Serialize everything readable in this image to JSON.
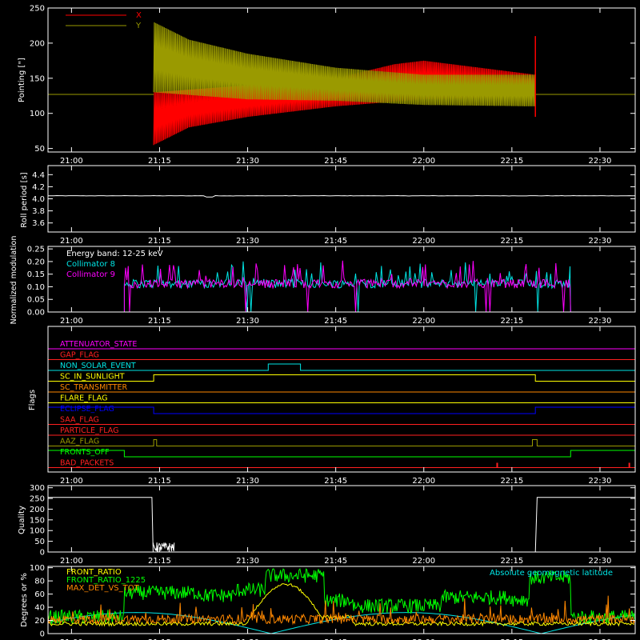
{
  "time_ticks": [
    "21:00",
    "21:15",
    "21:30",
    "21:45",
    "22:00",
    "22:15",
    "22:30"
  ],
  "time_tick_minutes": [
    0,
    15,
    30,
    45,
    60,
    75,
    90
  ],
  "time_range_minutes": [
    -4,
    96
  ],
  "colors": {
    "bg": "#000000",
    "axis": "#ffffff",
    "x_series": "#ff0000",
    "y_series": "#9a9a00",
    "cyan": "#00e5e5",
    "magenta": "#ff00ff",
    "yellow": "#ffff00",
    "orange": "#ff8800",
    "green": "#00ff00",
    "blue": "#0000ff",
    "red": "#ff2020"
  },
  "chart_data": [
    {
      "type": "line",
      "ylabel": "Pointing [\"]",
      "ylim": [
        45,
        250
      ],
      "yticks": [
        50,
        100,
        150,
        200,
        250
      ],
      "legend": {
        "placement": "top-left"
      },
      "series": [
        {
          "name": "X",
          "color": "#ff0000",
          "static_value": 127,
          "active_minutes": [
            14,
            79
          ],
          "envelope_lo": [
            [
              14,
              55
            ],
            [
              20,
              80
            ],
            [
              30,
              95
            ],
            [
              45,
              110
            ],
            [
              60,
              120
            ],
            [
              79,
              125
            ]
          ],
          "envelope_hi": [
            [
              14,
              130
            ],
            [
              30,
              140
            ],
            [
              45,
              150
            ],
            [
              55,
              170
            ],
            [
              60,
              175
            ],
            [
              79,
              155
            ]
          ]
        },
        {
          "name": "Y",
          "color": "#9a9a00",
          "static_value": 127,
          "active_minutes": [
            14,
            79
          ],
          "envelope_lo": [
            [
              14,
              130
            ],
            [
              30,
              120
            ],
            [
              45,
              118
            ],
            [
              60,
              112
            ],
            [
              79,
              110
            ]
          ],
          "envelope_hi": [
            [
              14,
              230
            ],
            [
              20,
              205
            ],
            [
              30,
              185
            ],
            [
              45,
              165
            ],
            [
              60,
              155
            ],
            [
              79,
              155
            ]
          ]
        }
      ]
    },
    {
      "type": "line",
      "ylabel": "Roll period [s]",
      "ylim": [
        3.45,
        4.55
      ],
      "yticks": [
        3.6,
        3.8,
        4.0,
        4.2,
        4.4
      ],
      "series": [
        {
          "color": "#ffffff",
          "value": 4.05
        }
      ]
    },
    {
      "type": "bar",
      "ylabel": "Normalized modulation",
      "ylim": [
        0,
        0.26
      ],
      "yticks": [
        "0.00",
        "0.05",
        "0.10",
        "0.15",
        "0.20",
        "0.25"
      ],
      "annotation": "Energy band: 12-25 keV",
      "legend": {
        "placement": "top-left"
      },
      "active_minutes": [
        9,
        85
      ],
      "series": [
        {
          "name": "Collimator 8",
          "color": "#00e5e5",
          "baseline": 0.1
        },
        {
          "name": "Collimator 9",
          "color": "#ff00ff",
          "baseline": 0.1
        }
      ]
    },
    {
      "type": "line",
      "ylabel": "Flags",
      "series": [
        {
          "name": "ATTENUATOR_STATE",
          "color": "#ff00ff",
          "segments": [
            [
              -4,
              96,
              0
            ]
          ]
        },
        {
          "name": "GAP_FLAG",
          "color": "#ff2020",
          "segments": [
            [
              -4,
              96,
              0
            ]
          ]
        },
        {
          "name": "NON_SOLAR_EVENT",
          "color": "#00e5e5",
          "segments": [
            [
              -4,
              33.5,
              0
            ],
            [
              33.5,
              39,
              1
            ],
            [
              39,
              96,
              0
            ]
          ]
        },
        {
          "name": "SC_IN_SUNLIGHT",
          "color": "#ffff00",
          "segments": [
            [
              -4,
              14,
              0
            ],
            [
              14,
              79,
              1
            ],
            [
              79,
              96,
              0
            ]
          ]
        },
        {
          "name": "SC_TRANSMITTER",
          "color": "#ff8800",
          "segments": [
            [
              -4,
              96,
              0
            ]
          ]
        },
        {
          "name": "FLARE_FLAG",
          "color": "#ffff00",
          "segments": [
            [
              -4,
              96,
              0
            ]
          ]
        },
        {
          "name": "ECLIPSE_FLAG",
          "color": "#0000ff",
          "segments": [
            [
              -4,
              14,
              1
            ],
            [
              14,
              79,
              0
            ],
            [
              79,
              96,
              1
            ]
          ]
        },
        {
          "name": "SAA_FLAG",
          "color": "#ff2020",
          "segments": [
            [
              -4,
              96,
              0
            ]
          ]
        },
        {
          "name": "PARTICLE_FLAG",
          "color": "#ff2020",
          "segments": [
            [
              -4,
              96,
              0
            ]
          ]
        },
        {
          "name": "AAZ_FLAG",
          "color": "#9a9a00",
          "segments": [
            [
              -4,
              14,
              0
            ],
            [
              14,
              14.5,
              1
            ],
            [
              14.5,
              78.5,
              0
            ],
            [
              78.5,
              79.3,
              1
            ],
            [
              79.3,
              96,
              0
            ]
          ]
        },
        {
          "name": "FRONTS_OFF",
          "color": "#00ff00",
          "segments": [
            [
              -4,
              9,
              1
            ],
            [
              9,
              85,
              0
            ],
            [
              85,
              96,
              1
            ]
          ]
        },
        {
          "name": "BAD_PACKETS",
          "color": "#ff2020",
          "segments": [
            [
              -4,
              96,
              0
            ]
          ],
          "spikes": [
            72.5,
            95
          ]
        }
      ]
    },
    {
      "type": "line",
      "ylabel": "Quality",
      "ylim": [
        0,
        310
      ],
      "yticks": [
        0,
        50,
        100,
        150,
        200,
        250,
        300
      ],
      "series": [
        {
          "color": "#ffffff",
          "points": [
            [
              -4,
              255
            ],
            [
              13.7,
              255
            ],
            [
              13.9,
              0
            ],
            [
              79,
              0
            ],
            [
              79.3,
              255
            ],
            [
              96,
              255
            ]
          ]
        }
      ]
    },
    {
      "type": "line",
      "ylabel": "Degrees or %",
      "ylim": [
        0,
        102
      ],
      "yticks": [
        0,
        20,
        40,
        60,
        80,
        100
      ],
      "legend": {
        "placement": "top-left"
      },
      "annotation": "Absolute geomagnetic latitude",
      "series": [
        {
          "name": "FRONT_RATIO",
          "color": "#ffff00"
        },
        {
          "name": "FRONT_RATIO_1225",
          "color": "#00ff00"
        },
        {
          "name": "MAX_DET_VS_TOT",
          "color": "#ff8800"
        },
        {
          "name": "Absolute geomagnetic latitude",
          "color": "#00e5e5"
        }
      ]
    }
  ]
}
